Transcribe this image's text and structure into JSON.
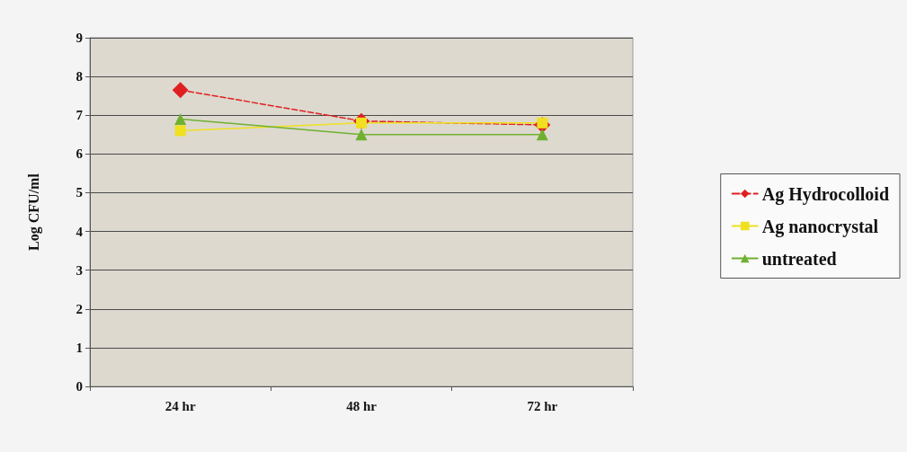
{
  "chart_data": {
    "type": "line",
    "ylabel": "Log CFU/ml",
    "categories": [
      "24 hr",
      "48 hr",
      "72 hr"
    ],
    "series": [
      {
        "name": "Ag Hydrocolloid",
        "color": "#e02020",
        "values": [
          7.65,
          6.85,
          6.75
        ],
        "marker": "diamond",
        "line_style": "dashed"
      },
      {
        "name": "Ag nanocrystal",
        "color": "#f0e020",
        "values": [
          6.6,
          6.8,
          6.8
        ],
        "marker": "square",
        "line_style": "solid"
      },
      {
        "name": "untreated",
        "color": "#70b030",
        "values": [
          6.9,
          6.5,
          6.5
        ],
        "marker": "triangle",
        "line_style": "solid"
      }
    ],
    "ylim": [
      0,
      9
    ],
    "yticks": [
      0,
      1,
      2,
      3,
      4,
      5,
      6,
      7,
      8,
      9
    ],
    "grid": "y",
    "legend": "right"
  }
}
